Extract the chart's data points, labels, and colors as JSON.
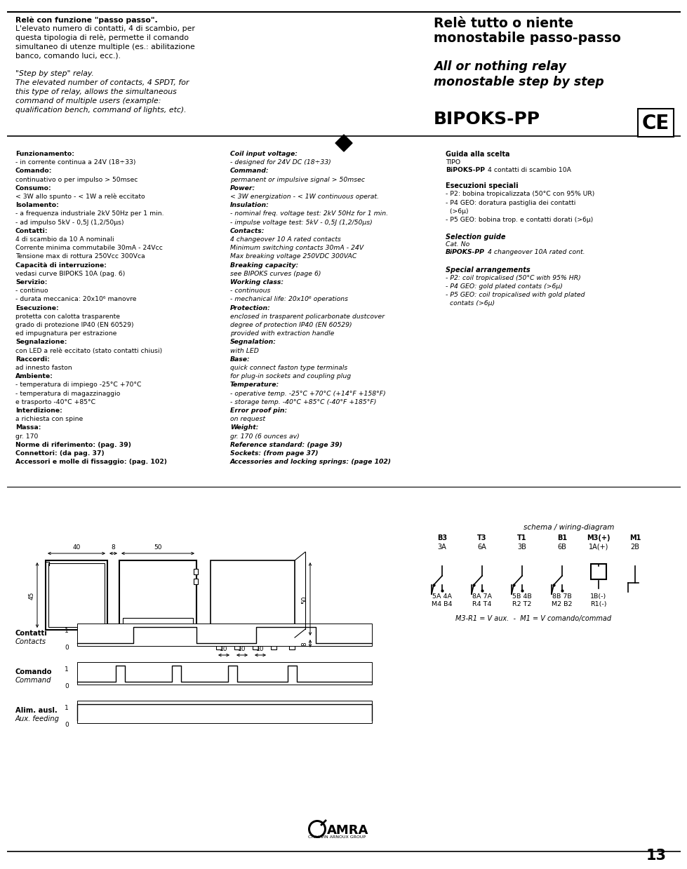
{
  "bg_color": "#ffffff",
  "text_color": "#000000",
  "page_number": "13",
  "header": {
    "italian_title_line1": "Relè con funzione \"passo passo\".",
    "italian_lines": [
      "L'elevato numero di contatti, 4 di scambio, per",
      "questa tipologia di relè, permette il comando",
      "simultaneo di utenze multiple (es.: abilitazione",
      "banco, comando luci, ecc.)."
    ],
    "english_title": "\"Step by step\" relay.",
    "english_lines": [
      "The elevated number of contacts, 4 SPDT, for",
      "this type of relay, allows the simultaneous",
      "command of multiple users (example:",
      "qualification bench, command of lights, etc)."
    ],
    "right_title_line1": "Relè tutto o niente",
    "right_title_line2": "monostabile passo-passo",
    "right_subtitle_line1": "All or nothing relay",
    "right_subtitle_line2": "monostable step by step",
    "model": "BIPOKS-PP"
  },
  "specs_left": [
    {
      "label": "Funzionamento:",
      "bold": true,
      "italic": false
    },
    {
      "label": "- in corrente continua a 24V (18÷33)",
      "bold": false,
      "italic": false
    },
    {
      "label": "Comando:",
      "bold": true,
      "italic": false
    },
    {
      "label": "continuativo o per impulso > 50msec",
      "bold": false,
      "italic": false
    },
    {
      "label": "Consumo:",
      "bold": true,
      "italic": false
    },
    {
      "label": "< 3W allo spunto - < 1W a relè eccitato",
      "bold": false,
      "italic": false
    },
    {
      "label": "Isolamento:",
      "bold": true,
      "italic": false
    },
    {
      "label": "- a frequenza industriale 2kV 50Hz per 1 min.",
      "bold": false,
      "italic": false
    },
    {
      "label": "- ad impulso 5kV - 0,5J (1,2/50µs)",
      "bold": false,
      "italic": false
    },
    {
      "label": "Contatti:",
      "bold": true,
      "italic": false
    },
    {
      "label": "4 di scambio da 10 A nominali",
      "bold": false,
      "italic": false
    },
    {
      "label": "Corrente minima commutabile 30mA - 24Vcc",
      "bold": false,
      "italic": false
    },
    {
      "label": "Tensione max di rottura 250Vcc 300Vca",
      "bold": false,
      "italic": false
    },
    {
      "label": "Capacità di interruzione:",
      "bold": true,
      "italic": false
    },
    {
      "label": "vedasi curve BIPOKS 10A (pag. 6)",
      "bold": false,
      "italic": false
    },
    {
      "label": "Servizio:",
      "bold": true,
      "italic": false
    },
    {
      "label": "- continuo",
      "bold": false,
      "italic": false
    },
    {
      "label": "- durata meccanica: 20x10⁶ manovre",
      "bold": false,
      "italic": false
    },
    {
      "label": "Esecuzione:",
      "bold": true,
      "italic": false
    },
    {
      "label": "protetta con calotta trasparente",
      "bold": false,
      "italic": false
    },
    {
      "label": "grado di protezione IP40 (EN 60529)",
      "bold": false,
      "italic": false
    },
    {
      "label": "ed impugnatura per estrazione",
      "bold": false,
      "italic": false
    },
    {
      "label": "Segnalazione:",
      "bold": true,
      "italic": false
    },
    {
      "label": "con LED a relè eccitato (stato contatti chiusi)",
      "bold": false,
      "italic": false
    },
    {
      "label": "Raccordi:",
      "bold": true,
      "italic": false
    },
    {
      "label": "ad innesto faston",
      "bold": false,
      "italic": false
    },
    {
      "label": "Ambiente:",
      "bold": true,
      "italic": false
    },
    {
      "label": "- temperatura di impiego -25°C +70°C",
      "bold": false,
      "italic": false
    },
    {
      "label": "- temperatura di magazzinaggio",
      "bold": false,
      "italic": false
    },
    {
      "label": "e trasporto -40°C +85°C",
      "bold": false,
      "italic": false
    },
    {
      "label": "Interdizione:",
      "bold": true,
      "italic": false
    },
    {
      "label": "a richiesta con spine",
      "bold": false,
      "italic": false
    },
    {
      "label": "Massa:",
      "bold": true,
      "italic": false
    },
    {
      "label": "gr. 170",
      "bold": false,
      "italic": false
    },
    {
      "label": "Norme di riferimento: (pag. 39)",
      "bold": true,
      "italic": false
    },
    {
      "label": "Connettori: (da pag. 37)",
      "bold": true,
      "italic": false
    },
    {
      "label": "Accessori e molle di fissaggio: (pag. 102)",
      "bold": true,
      "italic": false
    }
  ],
  "specs_mid": [
    {
      "label": "Coil input voltage:",
      "bold": true,
      "italic": true
    },
    {
      "label": "- designed for 24V DC (18÷33)",
      "bold": false,
      "italic": true
    },
    {
      "label": "Command:",
      "bold": true,
      "italic": true
    },
    {
      "label": "permanent or impulsive signal > 50msec",
      "bold": false,
      "italic": true
    },
    {
      "label": "Power:",
      "bold": true,
      "italic": true
    },
    {
      "label": "< 3W energization - < 1W continuous operat.",
      "bold": false,
      "italic": true
    },
    {
      "label": "Insulation:",
      "bold": true,
      "italic": true
    },
    {
      "label": "- nominal freq. voltage test: 2kV 50Hz for 1 min.",
      "bold": false,
      "italic": true
    },
    {
      "label": "- impulse voltage test: 5kV - 0,5J (1,2/50µs)",
      "bold": false,
      "italic": true
    },
    {
      "label": "Contacts:",
      "bold": true,
      "italic": true
    },
    {
      "label": "4 changeover 10 A rated contacts",
      "bold": false,
      "italic": true
    },
    {
      "label": "Minimum switching contacts 30mA - 24V",
      "bold": false,
      "italic": true
    },
    {
      "label": "Max breaking voltage 250VDC 300VAC",
      "bold": false,
      "italic": true
    },
    {
      "label": "Breaking capacity:",
      "bold": true,
      "italic": true
    },
    {
      "label": "see BIPOKS curves (page 6)",
      "bold": false,
      "italic": true
    },
    {
      "label": "Working class:",
      "bold": true,
      "italic": true
    },
    {
      "label": "- continuous",
      "bold": false,
      "italic": true
    },
    {
      "label": "- mechanical life: 20x10⁶ operations",
      "bold": false,
      "italic": true
    },
    {
      "label": "Protection:",
      "bold": true,
      "italic": true
    },
    {
      "label": "enclosed in trasparent policarbonate dustcover",
      "bold": false,
      "italic": true
    },
    {
      "label": "degree of protection IP40 (EN 60529)",
      "bold": false,
      "italic": true
    },
    {
      "label": "provided with extraction handle",
      "bold": false,
      "italic": true
    },
    {
      "label": "Segnalation:",
      "bold": true,
      "italic": true
    },
    {
      "label": "with LED",
      "bold": false,
      "italic": true
    },
    {
      "label": "Base:",
      "bold": true,
      "italic": true
    },
    {
      "label": "quick connect faston type terminals",
      "bold": false,
      "italic": true
    },
    {
      "label": "for plug-in sockets and coupling plug",
      "bold": false,
      "italic": true
    },
    {
      "label": "Temperature:",
      "bold": true,
      "italic": true
    },
    {
      "label": "- operative temp. -25°C +70°C (+14°F +158°F)",
      "bold": false,
      "italic": true
    },
    {
      "label": "- storage temp. -40°C +85°C (-40°F +185°F)",
      "bold": false,
      "italic": true
    },
    {
      "label": "Error proof pin:",
      "bold": true,
      "italic": true
    },
    {
      "label": "on request",
      "bold": false,
      "italic": true
    },
    {
      "label": "Weight:",
      "bold": true,
      "italic": true
    },
    {
      "label": "gr. 170 (6 ounces av)",
      "bold": false,
      "italic": true
    },
    {
      "label": "Reference standard: (page 39)",
      "bold": true,
      "italic": true
    },
    {
      "label": "Sockets: (from page 37)",
      "bold": true,
      "italic": true
    },
    {
      "label": "Accessories and locking springs: (page 102)",
      "bold": true,
      "italic": true
    }
  ],
  "specs_right": {
    "guida": "Guida alla scelta",
    "tipo": "TIPO",
    "bipoks_type": "BiPOKS-PP",
    "bipoks_desc": "4 contatti di scambio 10A",
    "esecuzioni": "Esecuzioni speciali",
    "p2": "- P2: bobina tropicalizzata (50°C con 95% UR)",
    "p4": "- P4 GEO: doratura pastiglia dei contatti",
    "p4b": "  (>6µ)",
    "p5": "- P5 GEO: bobina trop. e contatti dorati (>6µ)",
    "selection": "Selection guide",
    "cat": "Cat. No",
    "bipoks_en": "BiPOKS-PP",
    "bipoks_en_desc": "4 changeover 10A rated cont.",
    "special": "Special arrangements",
    "sp2": "- P2: coil tropicalised (50°C with 95% HR)",
    "sp4": "- P4 GEO: gold plated contats (>6µ)",
    "sp5": "- P5 GEO: coil tropicalised with gold plated",
    "sp5b": "  contats (>6µ)"
  },
  "wiring": {
    "schema_label": "schema / wiring-diagram",
    "col_top1": [
      "B3",
      "T3",
      "T1",
      "B1",
      "M3(+)",
      "M1"
    ],
    "col_top2": [
      "3A",
      "6A",
      "3B",
      "6B",
      "1A(+)",
      "2B"
    ],
    "col_bot1": [
      "5A 4A",
      "8A 7A",
      "5B 4B",
      "8B 7B",
      "1B(-)",
      ""
    ],
    "col_bot2": [
      "M4 B4",
      "R4 T4",
      "R2 T2",
      "M2 B2",
      "R1(-)",
      ""
    ],
    "formula": "M3-R1 = V aux.  -  M1 = V comando/commad"
  },
  "dim_40": "40",
  "dim_8": "8",
  "dim_50": "50",
  "dim_45": "45",
  "dim_50v": "50",
  "dim_8v": "8",
  "dim_10a": "10",
  "dim_10b": "10",
  "dim_10c": "10",
  "timing": {
    "label_it": [
      "Contatti",
      "Comando",
      "Alim. ausl."
    ],
    "label_en": [
      "Contacts",
      "Command",
      "Aux. feeding"
    ]
  }
}
